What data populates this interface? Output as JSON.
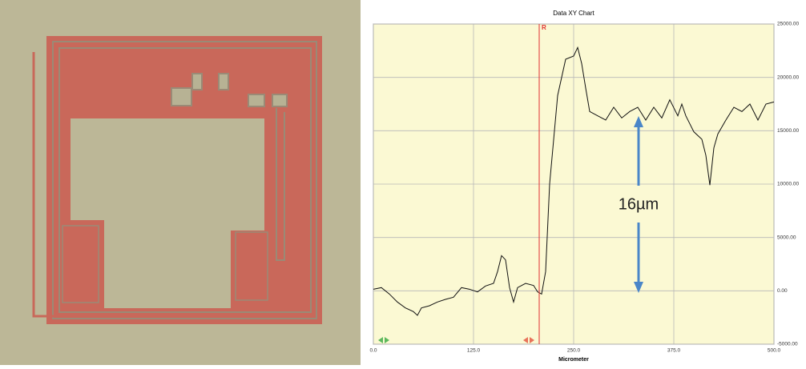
{
  "chart_data": {
    "type": "line",
    "title": "Data XY Chart",
    "x_label": "Micrometer",
    "x": [
      0,
      10,
      20,
      30,
      40,
      50,
      55,
      60,
      70,
      80,
      90,
      100,
      110,
      120,
      130,
      140,
      150,
      155,
      160,
      165,
      170,
      175,
      180,
      190,
      200,
      205,
      210,
      215,
      220,
      230,
      240,
      250,
      255,
      260,
      265,
      270,
      280,
      290,
      300,
      310,
      320,
      330,
      340,
      350,
      360,
      370,
      380,
      385,
      390,
      400,
      410,
      415,
      420,
      425,
      430,
      440,
      450,
      460,
      470,
      480,
      490,
      500
    ],
    "series": [
      {
        "color": "#111111",
        "values": [
          150,
          300,
          -300,
          -1050,
          -1600,
          -1950,
          -2300,
          -1600,
          -1400,
          -1050,
          -800,
          -600,
          300,
          150,
          -100,
          450,
          700,
          1800,
          3300,
          2900,
          300,
          -1050,
          300,
          700,
          500,
          -100,
          -300,
          1800,
          10000,
          18300,
          21700,
          22000,
          22800,
          21300,
          19000,
          16800,
          16400,
          16000,
          17200,
          16200,
          16800,
          17200,
          16000,
          17200,
          16200,
          17900,
          16400,
          17500,
          16400,
          14900,
          14200,
          12700,
          9900,
          13400,
          14700,
          16000,
          17200,
          16800,
          17500,
          16000,
          17500,
          17700
        ]
      }
    ],
    "xlim": [
      0,
      500
    ],
    "xticks": [
      {
        "value": 0,
        "label": "0.0"
      },
      {
        "value": 125,
        "label": "125.0"
      },
      {
        "value": 250,
        "label": "250.0"
      },
      {
        "value": 375,
        "label": "375.0"
      },
      {
        "value": 500,
        "label": "500.0"
      }
    ],
    "ylim": [
      -5000,
      25000
    ],
    "yticks": [
      {
        "value": -5000,
        "label": "-5000.00"
      },
      {
        "value": 0,
        "label": "0.00"
      },
      {
        "value": 5000,
        "label": "5000.00"
      },
      {
        "value": 10000,
        "label": "10000.00"
      },
      {
        "value": 15000,
        "label": "15000.00"
      },
      {
        "value": 20000,
        "label": "20000.00"
      },
      {
        "value": 25000,
        "label": "25000.00"
      }
    ],
    "grid": true,
    "marker_x": 207,
    "marker_label": "R",
    "annotation": "16µm"
  }
}
